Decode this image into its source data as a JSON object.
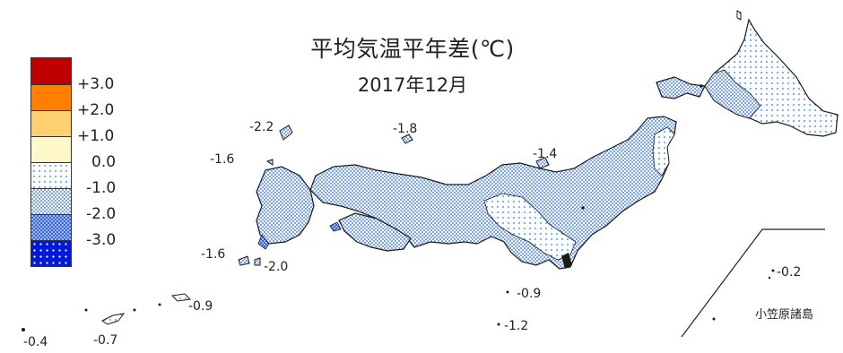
{
  "title": "平均気温平年差(℃)",
  "subtitle": "2017年12月",
  "legend": {
    "swatches": [
      {
        "color": "#c00000",
        "pattern": "solid"
      },
      {
        "color": "#ff8000",
        "pattern": "solid"
      },
      {
        "color": "#ffd070",
        "pattern": "solid"
      },
      {
        "color": "#fff8c8",
        "pattern": "solid"
      },
      {
        "color": "#e8f4ff",
        "pattern": "dots"
      },
      {
        "color": "#bcd8f8",
        "pattern": "checks"
      },
      {
        "color": "#4a7cf0",
        "pattern": "checks"
      },
      {
        "color": "#0018d8",
        "pattern": "dots"
      }
    ],
    "labels": [
      "+3.0",
      "+2.0",
      "+1.0",
      "0.0",
      "-1.0",
      "-2.0",
      "-3.0"
    ]
  },
  "regional_anomalies": [
    {
      "label": "-2.2",
      "region": "Tsushima"
    },
    {
      "label": "-1.6",
      "region": "Iki"
    },
    {
      "label": "-1.8",
      "region": "Oki"
    },
    {
      "label": "-1.4",
      "region": "Sado"
    },
    {
      "label": "-1.6",
      "region": "Goto"
    },
    {
      "label": "-2.0",
      "region": "Koshikijima"
    },
    {
      "label": "-0.9",
      "region": "Amami"
    },
    {
      "label": "-0.7",
      "region": "Okinawa"
    },
    {
      "label": "-0.4",
      "region": "Yaeyama"
    },
    {
      "label": "-0.9",
      "region": "Hachijojima"
    },
    {
      "label": "-1.2",
      "region": "Izu south"
    },
    {
      "label": "-0.2",
      "region": "Ogasawara"
    }
  ],
  "inset": {
    "label": "小笠原諸島"
  },
  "category_colors": {
    "minus1_to_0": "#e8f4ff",
    "minus2_to_minus1": "#bcd8f8",
    "minus3_to_minus2": "#4a7cf0",
    "coastline": "#1a1a1a"
  }
}
